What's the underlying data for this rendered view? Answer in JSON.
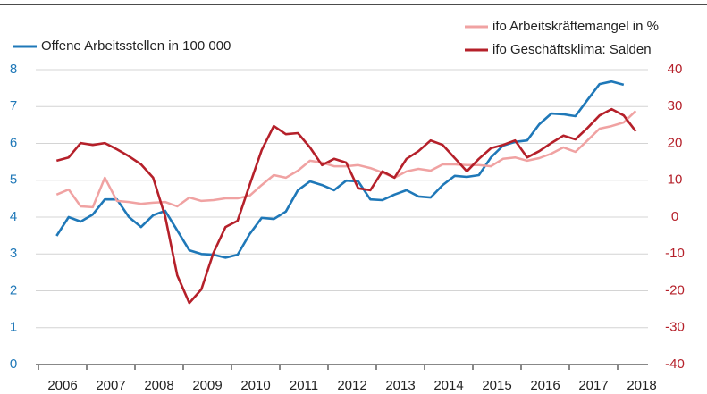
{
  "chart_data": {
    "type": "line",
    "x": [
      2006.375,
      2006.625,
      2006.875,
      2007.125,
      2007.375,
      2007.625,
      2007.875,
      2008.125,
      2008.375,
      2008.625,
      2008.875,
      2009.125,
      2009.375,
      2009.625,
      2009.875,
      2010.125,
      2010.375,
      2010.625,
      2010.875,
      2011.125,
      2011.375,
      2011.625,
      2011.875,
      2012.125,
      2012.375,
      2012.625,
      2012.875,
      2013.125,
      2013.375,
      2013.625,
      2013.875,
      2014.125,
      2014.375,
      2014.625,
      2014.875,
      2015.125,
      2015.375,
      2015.625,
      2015.875,
      2016.125,
      2016.375,
      2016.625,
      2016.875,
      2017.125,
      2017.375,
      2017.625,
      2017.875,
      2018.125,
      2018.375
    ],
    "xlim": [
      2006,
      2019
    ],
    "xticks": [
      {
        "value": 2006.5,
        "label": "2006"
      },
      {
        "value": 2007.5,
        "label": "2007"
      },
      {
        "value": 2008.5,
        "label": "2008"
      },
      {
        "value": 2009.5,
        "label": "2009"
      },
      {
        "value": 2010.5,
        "label": "2010"
      },
      {
        "value": 2011.5,
        "label": "2011"
      },
      {
        "value": 2012.5,
        "label": "2012"
      },
      {
        "value": 2013.5,
        "label": "2013"
      },
      {
        "value": 2014.5,
        "label": "2014"
      },
      {
        "value": 2015.5,
        "label": "2015"
      },
      {
        "value": 2016.5,
        "label": "2016"
      },
      {
        "value": 2017.5,
        "label": "2017"
      },
      {
        "value": 2018.5,
        "label": "2018"
      }
    ],
    "ylim": [
      0,
      8
    ],
    "yticks": [
      0,
      1,
      2,
      3,
      4,
      5,
      6,
      7,
      8
    ],
    "y2lim": [
      -40,
      40
    ],
    "y2ticks": [
      -40,
      -30,
      -20,
      -10,
      0,
      10,
      20,
      30,
      40
    ],
    "grid": true,
    "series": [
      {
        "name": "Offene Arbeitsstellen in 100 000",
        "color": "#1f78b8",
        "axis": "y",
        "values": [
          3.49,
          4.0,
          3.88,
          4.07,
          4.48,
          4.48,
          4.0,
          3.73,
          4.05,
          4.17,
          3.64,
          3.1,
          3.0,
          2.98,
          2.9,
          2.98,
          3.54,
          3.98,
          3.95,
          4.15,
          4.73,
          4.97,
          4.87,
          4.73,
          4.99,
          4.97,
          4.48,
          4.46,
          4.61,
          4.73,
          4.56,
          4.53,
          4.87,
          5.12,
          5.09,
          5.14,
          5.62,
          5.94,
          6.04,
          6.08,
          6.52,
          6.81,
          6.79,
          6.74,
          7.18,
          7.61,
          7.68,
          7.59,
          null
        ]
      },
      {
        "name": "ifo Arbeitskräftemangel in %",
        "color": "#f0a2a2",
        "axis": "y2",
        "values": [
          6.1,
          7.5,
          2.9,
          2.7,
          10.7,
          4.4,
          4.1,
          3.6,
          3.9,
          4.1,
          2.9,
          5.3,
          4.4,
          4.6,
          5.1,
          5.1,
          5.8,
          8.7,
          11.4,
          10.7,
          12.6,
          15.3,
          14.8,
          13.8,
          13.8,
          14.1,
          13.3,
          12.1,
          10.7,
          12.4,
          13.1,
          12.6,
          14.3,
          14.3,
          14.1,
          14.1,
          13.8,
          15.8,
          16.2,
          15.3,
          16.0,
          17.2,
          18.9,
          17.7,
          20.8,
          24.0,
          24.7,
          25.7,
          28.8
        ]
      },
      {
        "name": "ifo Geschäftsklima: Salden",
        "color": "#b5202a",
        "axis": "y2",
        "values": [
          15.3,
          16.2,
          20.1,
          19.6,
          20.1,
          18.4,
          16.5,
          14.3,
          10.7,
          0.2,
          -15.8,
          -23.3,
          -19.6,
          -9.7,
          -2.7,
          -1.0,
          8.7,
          18.2,
          24.7,
          22.5,
          22.8,
          18.9,
          14.1,
          15.8,
          14.8,
          7.8,
          7.3,
          12.4,
          10.7,
          15.8,
          17.9,
          20.8,
          19.6,
          16.0,
          12.4,
          15.8,
          18.7,
          19.6,
          20.8,
          16.2,
          17.9,
          20.1,
          22.1,
          21.1,
          24.2,
          27.6,
          29.3,
          27.6,
          23.3
        ]
      }
    ]
  }
}
